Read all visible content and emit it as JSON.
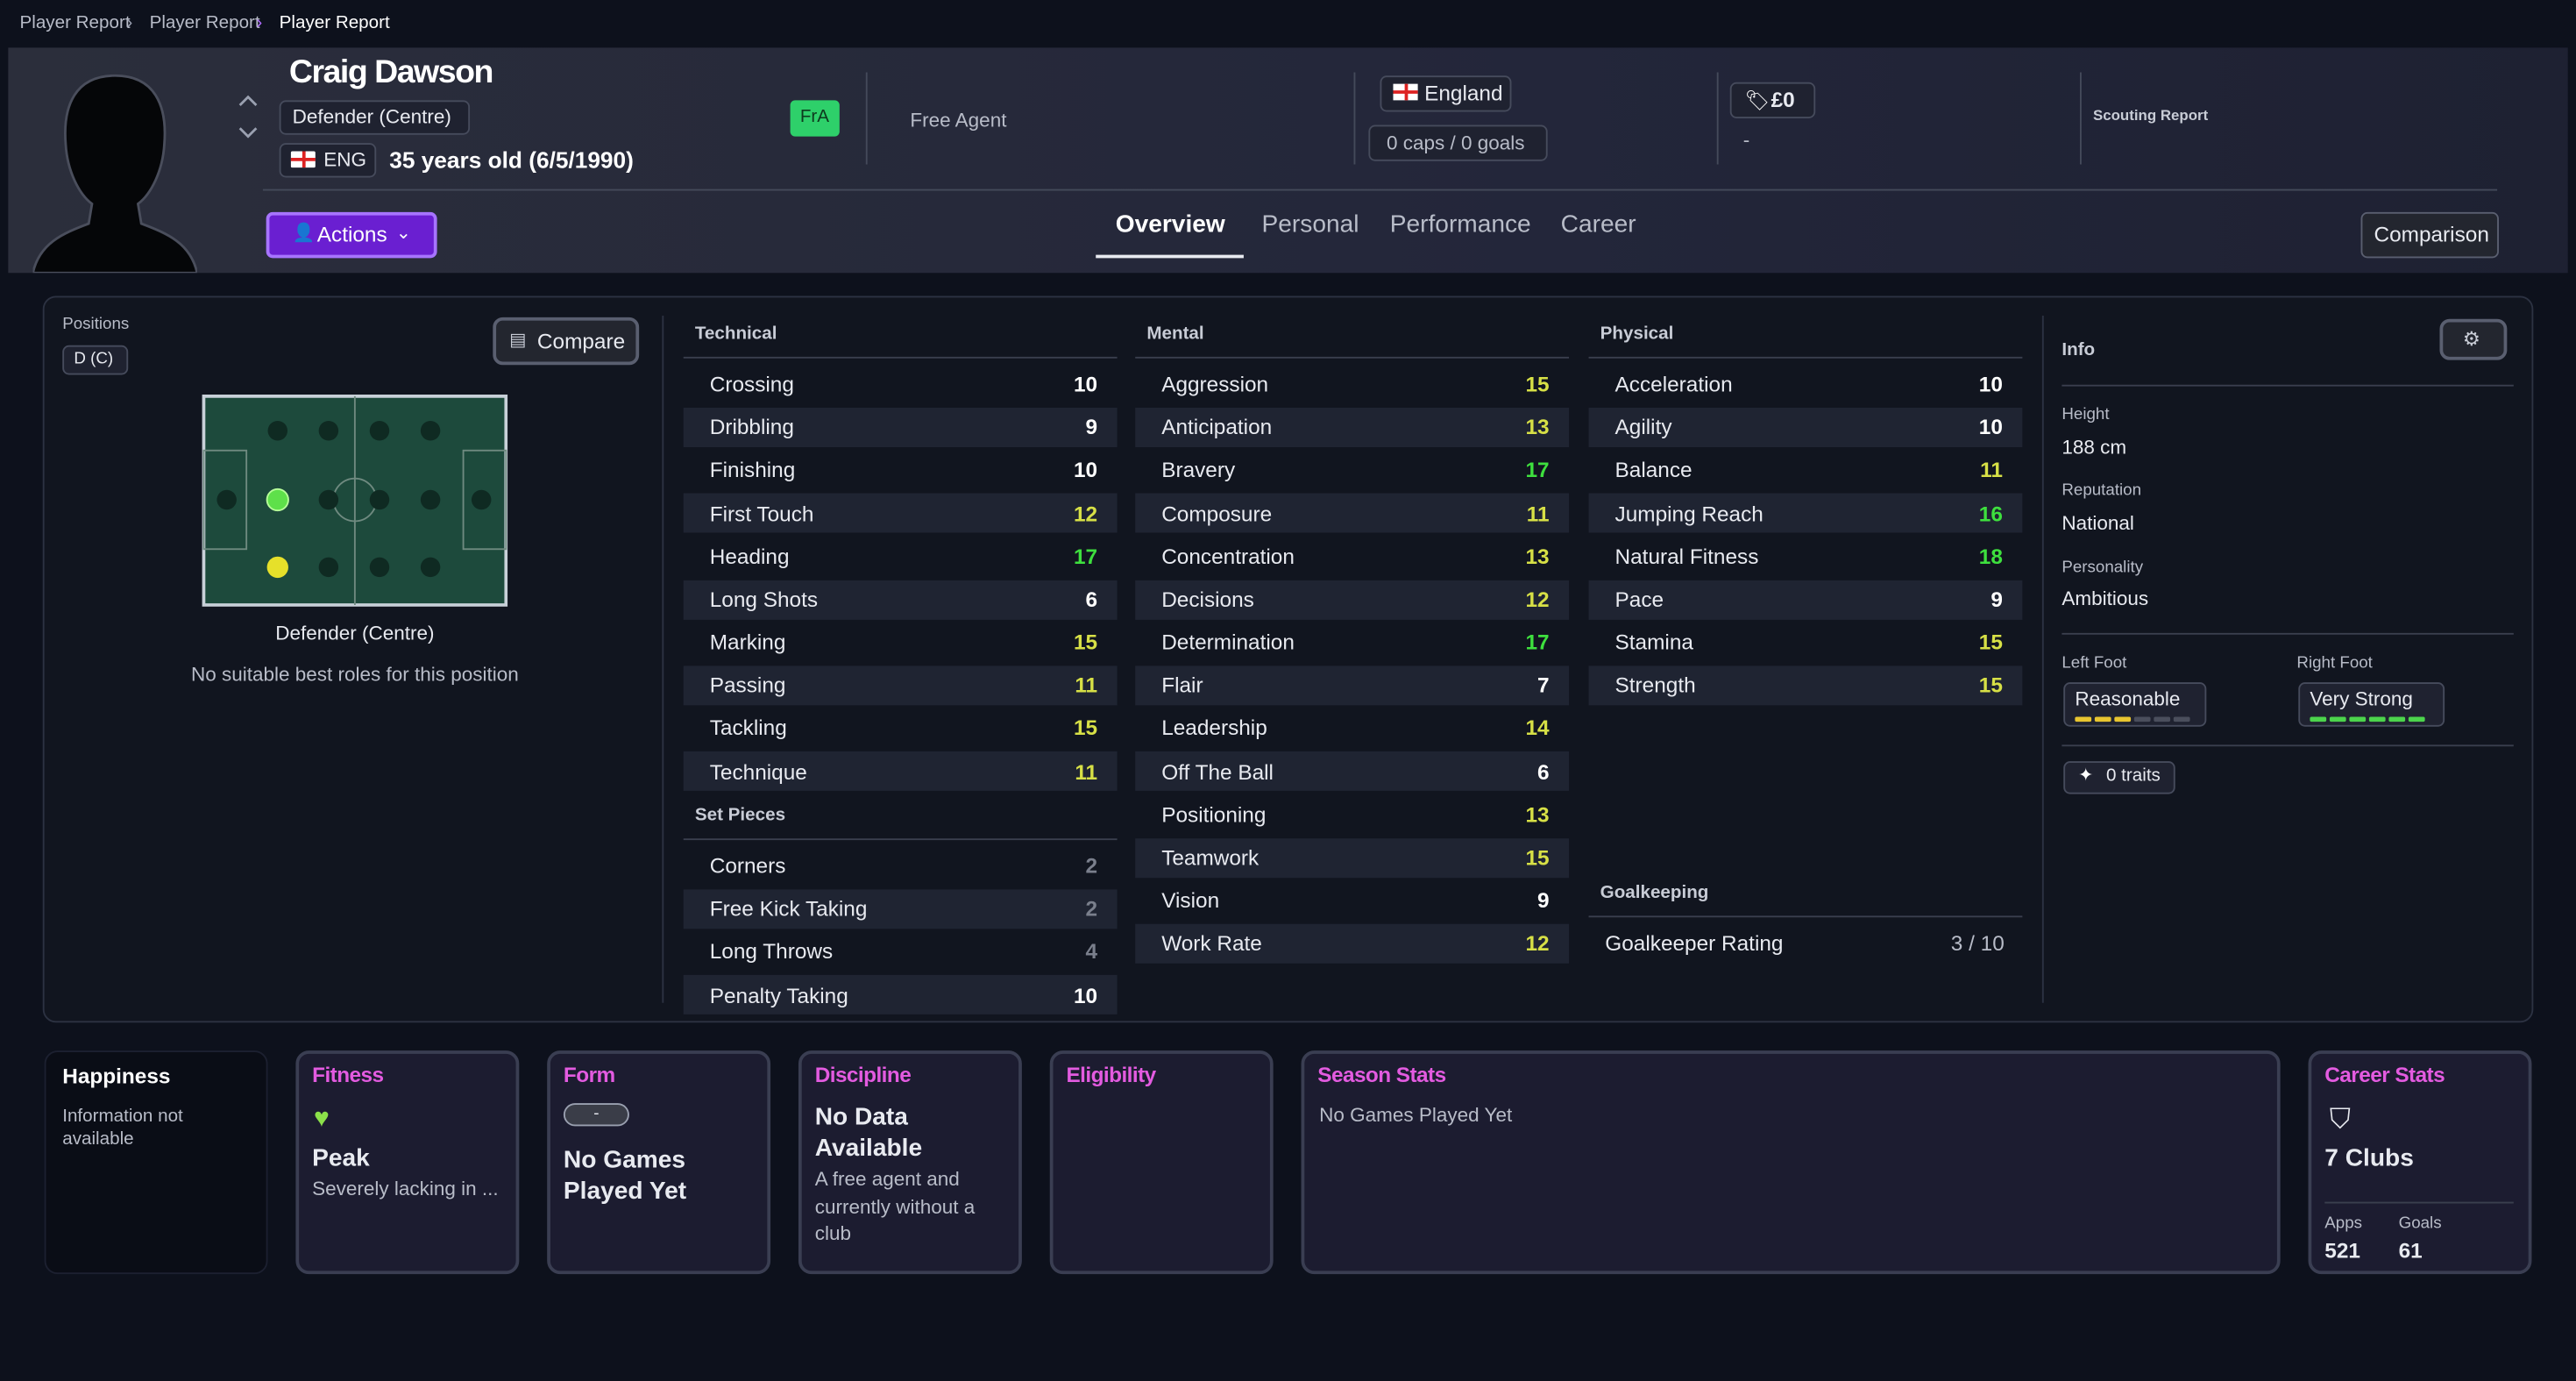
{
  "breadcrumb": [
    "Player Report",
    "Player Report",
    "Player Report"
  ],
  "player": {
    "name": "Craig Dawson",
    "position": "Defender (Centre)",
    "nationality_code": "ENG",
    "age": "35 years old (6/5/1990)",
    "status_badge": "FrA",
    "contract": "Free Agent",
    "nation": "England",
    "caps": "0 caps / 0 goals",
    "value": "£0",
    "value_sub": "-",
    "scouting": "Scouting Report"
  },
  "actions": "Actions",
  "tabs": [
    "Overview",
    "Personal",
    "Performance",
    "Career"
  ],
  "comparison": "Comparison",
  "positions": {
    "label": "Positions",
    "badge": "D (C)",
    "compare": "Compare",
    "role": "Defender (Centre)",
    "note": "No suitable best roles for this position"
  },
  "attributes": {
    "technical": {
      "title": "Technical",
      "items": [
        {
          "name": "Crossing",
          "value": 10
        },
        {
          "name": "Dribbling",
          "value": 9
        },
        {
          "name": "Finishing",
          "value": 10
        },
        {
          "name": "First Touch",
          "value": 12
        },
        {
          "name": "Heading",
          "value": 17
        },
        {
          "name": "Long Shots",
          "value": 6
        },
        {
          "name": "Marking",
          "value": 15
        },
        {
          "name": "Passing",
          "value": 11
        },
        {
          "name": "Tackling",
          "value": 15
        },
        {
          "name": "Technique",
          "value": 11
        }
      ]
    },
    "set_pieces": {
      "title": "Set Pieces",
      "items": [
        {
          "name": "Corners",
          "value": 2
        },
        {
          "name": "Free Kick Taking",
          "value": 2
        },
        {
          "name": "Long Throws",
          "value": 4
        },
        {
          "name": "Penalty Taking",
          "value": 10
        }
      ]
    },
    "mental": {
      "title": "Mental",
      "items": [
        {
          "name": "Aggression",
          "value": 15
        },
        {
          "name": "Anticipation",
          "value": 13
        },
        {
          "name": "Bravery",
          "value": 17
        },
        {
          "name": "Composure",
          "value": 11
        },
        {
          "name": "Concentration",
          "value": 13
        },
        {
          "name": "Decisions",
          "value": 12
        },
        {
          "name": "Determination",
          "value": 17
        },
        {
          "name": "Flair",
          "value": 7
        },
        {
          "name": "Leadership",
          "value": 14
        },
        {
          "name": "Off The Ball",
          "value": 6
        },
        {
          "name": "Positioning",
          "value": 13
        },
        {
          "name": "Teamwork",
          "value": 15
        },
        {
          "name": "Vision",
          "value": 9
        },
        {
          "name": "Work Rate",
          "value": 12
        }
      ]
    },
    "physical": {
      "title": "Physical",
      "items": [
        {
          "name": "Acceleration",
          "value": 10
        },
        {
          "name": "Agility",
          "value": 10
        },
        {
          "name": "Balance",
          "value": 11
        },
        {
          "name": "Jumping Reach",
          "value": 16
        },
        {
          "name": "Natural Fitness",
          "value": 18
        },
        {
          "name": "Pace",
          "value": 9
        },
        {
          "name": "Stamina",
          "value": 15
        },
        {
          "name": "Strength",
          "value": 15
        }
      ]
    },
    "goalkeeping": {
      "title": "Goalkeeping",
      "label": "Goalkeeper Rating",
      "value": "3 / 10"
    }
  },
  "info": {
    "title": "Info",
    "fields": [
      {
        "label": "Height",
        "value": "188 cm"
      },
      {
        "label": "Reputation",
        "value": "National"
      },
      {
        "label": "Personality",
        "value": "Ambitious"
      }
    ],
    "left_foot": {
      "label": "Left Foot",
      "value": "Reasonable",
      "level": 3,
      "color": "#e8c530"
    },
    "right_foot": {
      "label": "Right Foot",
      "value": "Very Strong",
      "level": 6,
      "color": "#4cd44c"
    },
    "traits": "0 traits"
  },
  "cards": {
    "happiness": {
      "title": "Happiness",
      "text": "Information not available"
    },
    "fitness": {
      "title": "Fitness",
      "value": "Peak",
      "text": "Severely lacking in ..."
    },
    "form": {
      "title": "Form",
      "badge": "-",
      "text": "No Games Played Yet"
    },
    "discipline": {
      "title": "Discipline",
      "value": "No Data Available",
      "text": "A free agent and currently without a club"
    },
    "eligibility": {
      "title": "Eligibility"
    },
    "season_stats": {
      "title": "Season Stats",
      "text": "No Games Played Yet"
    },
    "career_stats": {
      "title": "Career Stats",
      "value": "7 Clubs",
      "apps_label": "Apps",
      "apps": "521",
      "goals_label": "Goals",
      "goals": "61"
    }
  }
}
